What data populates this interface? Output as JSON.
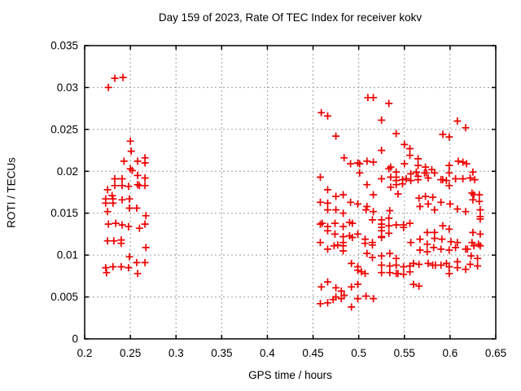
{
  "chart_data": {
    "type": "scatter",
    "title": "Day 159 of 2023, Rate Of TEC Index for receiver kokv",
    "xlabel": "GPS time / hours",
    "ylabel": "ROTI / TECUs",
    "xlim": [
      0.2,
      0.65
    ],
    "ylim": [
      0,
      0.035
    ],
    "xticks": [
      0.2,
      0.25,
      0.3,
      0.35,
      0.4,
      0.45,
      0.5,
      0.55,
      0.6,
      0.65
    ],
    "xtick_labels": [
      "0.2",
      "0.25",
      "0.3",
      "0.35",
      "0.4",
      "0.45",
      "0.5",
      "0.55",
      "0.6",
      "0.65"
    ],
    "yticks": [
      0,
      0.005,
      0.01,
      0.015,
      0.02,
      0.025,
      0.03,
      0.035
    ],
    "ytick_labels": [
      "0",
      "0.005",
      "0.01",
      "0.015",
      "0.02",
      "0.025",
      "0.03",
      "0.035"
    ],
    "grid": true,
    "grid_style": "dashed",
    "grid_color": "#9c9c9c",
    "border_color": "#000000",
    "legend_position": "none",
    "marker": {
      "shape": "plus",
      "color": "#ee0000",
      "size": 9
    },
    "series": [
      {
        "name": "ROTI",
        "points": [
          [
            0.233,
            0.0311
          ],
          [
            0.242,
            0.0312
          ],
          [
            0.226,
            0.03
          ],
          [
            0.25,
            0.0236
          ],
          [
            0.251,
            0.0224
          ],
          [
            0.243,
            0.0212
          ],
          [
            0.258,
            0.0212
          ],
          [
            0.266,
            0.0216
          ],
          [
            0.266,
            0.021
          ],
          [
            0.25,
            0.0203
          ],
          [
            0.252,
            0.0201
          ],
          [
            0.258,
            0.0195
          ],
          [
            0.266,
            0.0192
          ],
          [
            0.233,
            0.0191
          ],
          [
            0.241,
            0.0191
          ],
          [
            0.233,
            0.0183
          ],
          [
            0.241,
            0.0183
          ],
          [
            0.248,
            0.0182
          ],
          [
            0.258,
            0.0184
          ],
          [
            0.26,
            0.0183
          ],
          [
            0.266,
            0.0183
          ],
          [
            0.225,
            0.0178
          ],
          [
            0.23,
            0.0171
          ],
          [
            0.223,
            0.0167
          ],
          [
            0.231,
            0.0167
          ],
          [
            0.241,
            0.0166
          ],
          [
            0.249,
            0.0167
          ],
          [
            0.223,
            0.0162
          ],
          [
            0.231,
            0.0162
          ],
          [
            0.249,
            0.0156
          ],
          [
            0.257,
            0.0156
          ],
          [
            0.225,
            0.0152
          ],
          [
            0.267,
            0.0147
          ],
          [
            0.226,
            0.0137
          ],
          [
            0.234,
            0.0138
          ],
          [
            0.241,
            0.0136
          ],
          [
            0.248,
            0.0134
          ],
          [
            0.26,
            0.0132
          ],
          [
            0.266,
            0.0137
          ],
          [
            0.225,
            0.0117
          ],
          [
            0.232,
            0.0117
          ],
          [
            0.24,
            0.0118
          ],
          [
            0.24,
            0.0114
          ],
          [
            0.267,
            0.0109
          ],
          [
            0.249,
            0.0098
          ],
          [
            0.257,
            0.0091
          ],
          [
            0.266,
            0.0091
          ],
          [
            0.231,
            0.0086
          ],
          [
            0.24,
            0.0086
          ],
          [
            0.223,
            0.0085
          ],
          [
            0.248,
            0.0085
          ],
          [
            0.224,
            0.0079
          ],
          [
            0.258,
            0.0078
          ],
          [
            0.51,
            0.0288
          ],
          [
            0.516,
            0.0288
          ],
          [
            0.533,
            0.0281
          ],
          [
            0.459,
            0.027
          ],
          [
            0.466,
            0.0266
          ],
          [
            0.525,
            0.0261
          ],
          [
            0.608,
            0.026
          ],
          [
            0.617,
            0.0252
          ],
          [
            0.541,
            0.0245
          ],
          [
            0.592,
            0.0244
          ],
          [
            0.599,
            0.0241
          ],
          [
            0.475,
            0.0242
          ],
          [
            0.55,
            0.0232
          ],
          [
            0.556,
            0.0227
          ],
          [
            0.525,
            0.0225
          ],
          [
            0.556,
            0.0219
          ],
          [
            0.565,
            0.0215
          ],
          [
            0.484,
            0.0216
          ],
          [
            0.609,
            0.0212
          ],
          [
            0.614,
            0.0211
          ],
          [
            0.618,
            0.0209
          ],
          [
            0.599,
            0.0207
          ],
          [
            0.491,
            0.0209
          ],
          [
            0.499,
            0.021
          ],
          [
            0.501,
            0.0209
          ],
          [
            0.509,
            0.0212
          ],
          [
            0.516,
            0.0211
          ],
          [
            0.55,
            0.0209
          ],
          [
            0.533,
            0.0203
          ],
          [
            0.565,
            0.0207
          ],
          [
            0.573,
            0.0205
          ],
          [
            0.58,
            0.0202
          ],
          [
            0.501,
            0.0198
          ],
          [
            0.458,
            0.0193
          ],
          [
            0.541,
            0.0199
          ],
          [
            0.541,
            0.0193
          ],
          [
            0.541,
            0.0189
          ],
          [
            0.541,
            0.0184
          ],
          [
            0.525,
            0.0191
          ],
          [
            0.557,
            0.0197
          ],
          [
            0.565,
            0.0194
          ],
          [
            0.509,
            0.0184
          ],
          [
            0.466,
            0.0178
          ],
          [
            0.535,
            0.0205
          ],
          [
            0.535,
            0.0193
          ],
          [
            0.535,
            0.0181
          ],
          [
            0.548,
            0.019
          ],
          [
            0.548,
            0.0185
          ],
          [
            0.552,
            0.0191
          ],
          [
            0.563,
            0.0199
          ],
          [
            0.572,
            0.0198
          ],
          [
            0.574,
            0.0198
          ],
          [
            0.583,
            0.0198
          ],
          [
            0.599,
            0.0198
          ],
          [
            0.625,
            0.0199
          ],
          [
            0.565,
            0.019
          ],
          [
            0.576,
            0.0192
          ],
          [
            0.59,
            0.019
          ],
          [
            0.592,
            0.019
          ],
          [
            0.596,
            0.0189
          ],
          [
            0.606,
            0.0191
          ],
          [
            0.614,
            0.0191
          ],
          [
            0.622,
            0.0192
          ],
          [
            0.627,
            0.019
          ],
          [
            0.557,
            0.0189
          ],
          [
            0.599,
            0.0183
          ],
          [
            0.475,
            0.017
          ],
          [
            0.483,
            0.0172
          ],
          [
            0.516,
            0.0172
          ],
          [
            0.543,
            0.0173
          ],
          [
            0.458,
            0.0163
          ],
          [
            0.466,
            0.0162
          ],
          [
            0.491,
            0.0163
          ],
          [
            0.499,
            0.0161
          ],
          [
            0.509,
            0.0158
          ],
          [
            0.566,
            0.0168
          ],
          [
            0.573,
            0.017
          ],
          [
            0.581,
            0.0169
          ],
          [
            0.576,
            0.0161
          ],
          [
            0.59,
            0.0163
          ],
          [
            0.6,
            0.0161
          ],
          [
            0.624,
            0.0174
          ],
          [
            0.626,
            0.0172
          ],
          [
            0.632,
            0.0172
          ],
          [
            0.625,
            0.0166
          ],
          [
            0.632,
            0.0164
          ],
          [
            0.567,
            0.0158
          ],
          [
            0.466,
            0.0154
          ],
          [
            0.475,
            0.0154
          ],
          [
            0.483,
            0.015
          ],
          [
            0.508,
            0.0154
          ],
          [
            0.516,
            0.0152
          ],
          [
            0.534,
            0.0153
          ],
          [
            0.583,
            0.0154
          ],
          [
            0.608,
            0.0155
          ],
          [
            0.617,
            0.0152
          ],
          [
            0.633,
            0.0154
          ],
          [
            0.633,
            0.0146
          ],
          [
            0.633,
            0.0143
          ],
          [
            0.458,
            0.0137
          ],
          [
            0.46,
            0.0138
          ],
          [
            0.466,
            0.0134
          ],
          [
            0.474,
            0.0138
          ],
          [
            0.483,
            0.0134
          ],
          [
            0.49,
            0.0139
          ],
          [
            0.493,
            0.0138
          ],
          [
            0.515,
            0.0142
          ],
          [
            0.525,
            0.0142
          ],
          [
            0.533,
            0.0144
          ],
          [
            0.525,
            0.0137
          ],
          [
            0.533,
            0.0135
          ],
          [
            0.525,
            0.0133
          ],
          [
            0.525,
            0.0129
          ],
          [
            0.533,
            0.0126
          ],
          [
            0.525,
            0.0122
          ],
          [
            0.541,
            0.0136
          ],
          [
            0.549,
            0.0136
          ],
          [
            0.556,
            0.0138
          ],
          [
            0.549,
            0.0133
          ],
          [
            0.592,
            0.0135
          ],
          [
            0.599,
            0.0131
          ],
          [
            0.575,
            0.0127
          ],
          [
            0.583,
            0.0127
          ],
          [
            0.625,
            0.0127
          ],
          [
            0.633,
            0.0125
          ],
          [
            0.466,
            0.0129
          ],
          [
            0.474,
            0.0125
          ],
          [
            0.483,
            0.0122
          ],
          [
            0.49,
            0.0123
          ],
          [
            0.493,
            0.0121
          ],
          [
            0.499,
            0.0125
          ],
          [
            0.458,
            0.0115
          ],
          [
            0.473,
            0.0111
          ],
          [
            0.477,
            0.0112
          ],
          [
            0.466,
            0.0107
          ],
          [
            0.483,
            0.0115
          ],
          [
            0.483,
            0.0111
          ],
          [
            0.483,
            0.0105
          ],
          [
            0.507,
            0.0119
          ],
          [
            0.507,
            0.0114
          ],
          [
            0.515,
            0.0115
          ],
          [
            0.515,
            0.0112
          ],
          [
            0.525,
            0.0121
          ],
          [
            0.567,
            0.0119
          ],
          [
            0.557,
            0.0115
          ],
          [
            0.583,
            0.012
          ],
          [
            0.591,
            0.0119
          ],
          [
            0.601,
            0.0116
          ],
          [
            0.608,
            0.0115
          ],
          [
            0.624,
            0.0115
          ],
          [
            0.631,
            0.0113
          ],
          [
            0.575,
            0.0113
          ],
          [
            0.582,
            0.0109
          ],
          [
            0.59,
            0.0107
          ],
          [
            0.567,
            0.0106
          ],
          [
            0.575,
            0.0104
          ],
          [
            0.599,
            0.0106
          ],
          [
            0.606,
            0.0109
          ],
          [
            0.617,
            0.0107
          ],
          [
            0.619,
            0.0107
          ],
          [
            0.626,
            0.0111
          ],
          [
            0.633,
            0.0111
          ],
          [
            0.623,
            0.0099
          ],
          [
            0.63,
            0.0096
          ],
          [
            0.534,
            0.0102
          ],
          [
            0.541,
            0.0096
          ],
          [
            0.525,
            0.0099
          ],
          [
            0.515,
            0.0097
          ],
          [
            0.509,
            0.0102
          ],
          [
            0.492,
            0.009
          ],
          [
            0.499,
            0.0086
          ],
          [
            0.499,
            0.0082
          ],
          [
            0.503,
            0.008
          ],
          [
            0.507,
            0.0078
          ],
          [
            0.525,
            0.0088
          ],
          [
            0.525,
            0.0079
          ],
          [
            0.534,
            0.0087
          ],
          [
            0.541,
            0.0088
          ],
          [
            0.549,
            0.0086
          ],
          [
            0.556,
            0.0087
          ],
          [
            0.534,
            0.0079
          ],
          [
            0.541,
            0.0078
          ],
          [
            0.543,
            0.0078
          ],
          [
            0.549,
            0.0077
          ],
          [
            0.556,
            0.008
          ],
          [
            0.56,
            0.009
          ],
          [
            0.566,
            0.0089
          ],
          [
            0.576,
            0.009
          ],
          [
            0.581,
            0.0088
          ],
          [
            0.584,
            0.0088
          ],
          [
            0.59,
            0.0088
          ],
          [
            0.596,
            0.009
          ],
          [
            0.599,
            0.0086
          ],
          [
            0.608,
            0.0092
          ],
          [
            0.608,
            0.0085
          ],
          [
            0.617,
            0.0083
          ],
          [
            0.622,
            0.0089
          ],
          [
            0.63,
            0.0087
          ],
          [
            0.599,
            0.0078
          ],
          [
            0.466,
            0.0068
          ],
          [
            0.459,
            0.0062
          ],
          [
            0.475,
            0.0061
          ],
          [
            0.481,
            0.0057
          ],
          [
            0.492,
            0.0062
          ],
          [
            0.499,
            0.0065
          ],
          [
            0.484,
            0.0052
          ],
          [
            0.475,
            0.005
          ],
          [
            0.56,
            0.0065
          ],
          [
            0.566,
            0.0063
          ],
          [
            0.458,
            0.0042
          ],
          [
            0.466,
            0.0043
          ],
          [
            0.472,
            0.0047
          ],
          [
            0.481,
            0.0048
          ],
          [
            0.492,
            0.0038
          ],
          [
            0.499,
            0.0048
          ],
          [
            0.508,
            0.0051
          ],
          [
            0.516,
            0.0048
          ]
        ]
      }
    ]
  }
}
